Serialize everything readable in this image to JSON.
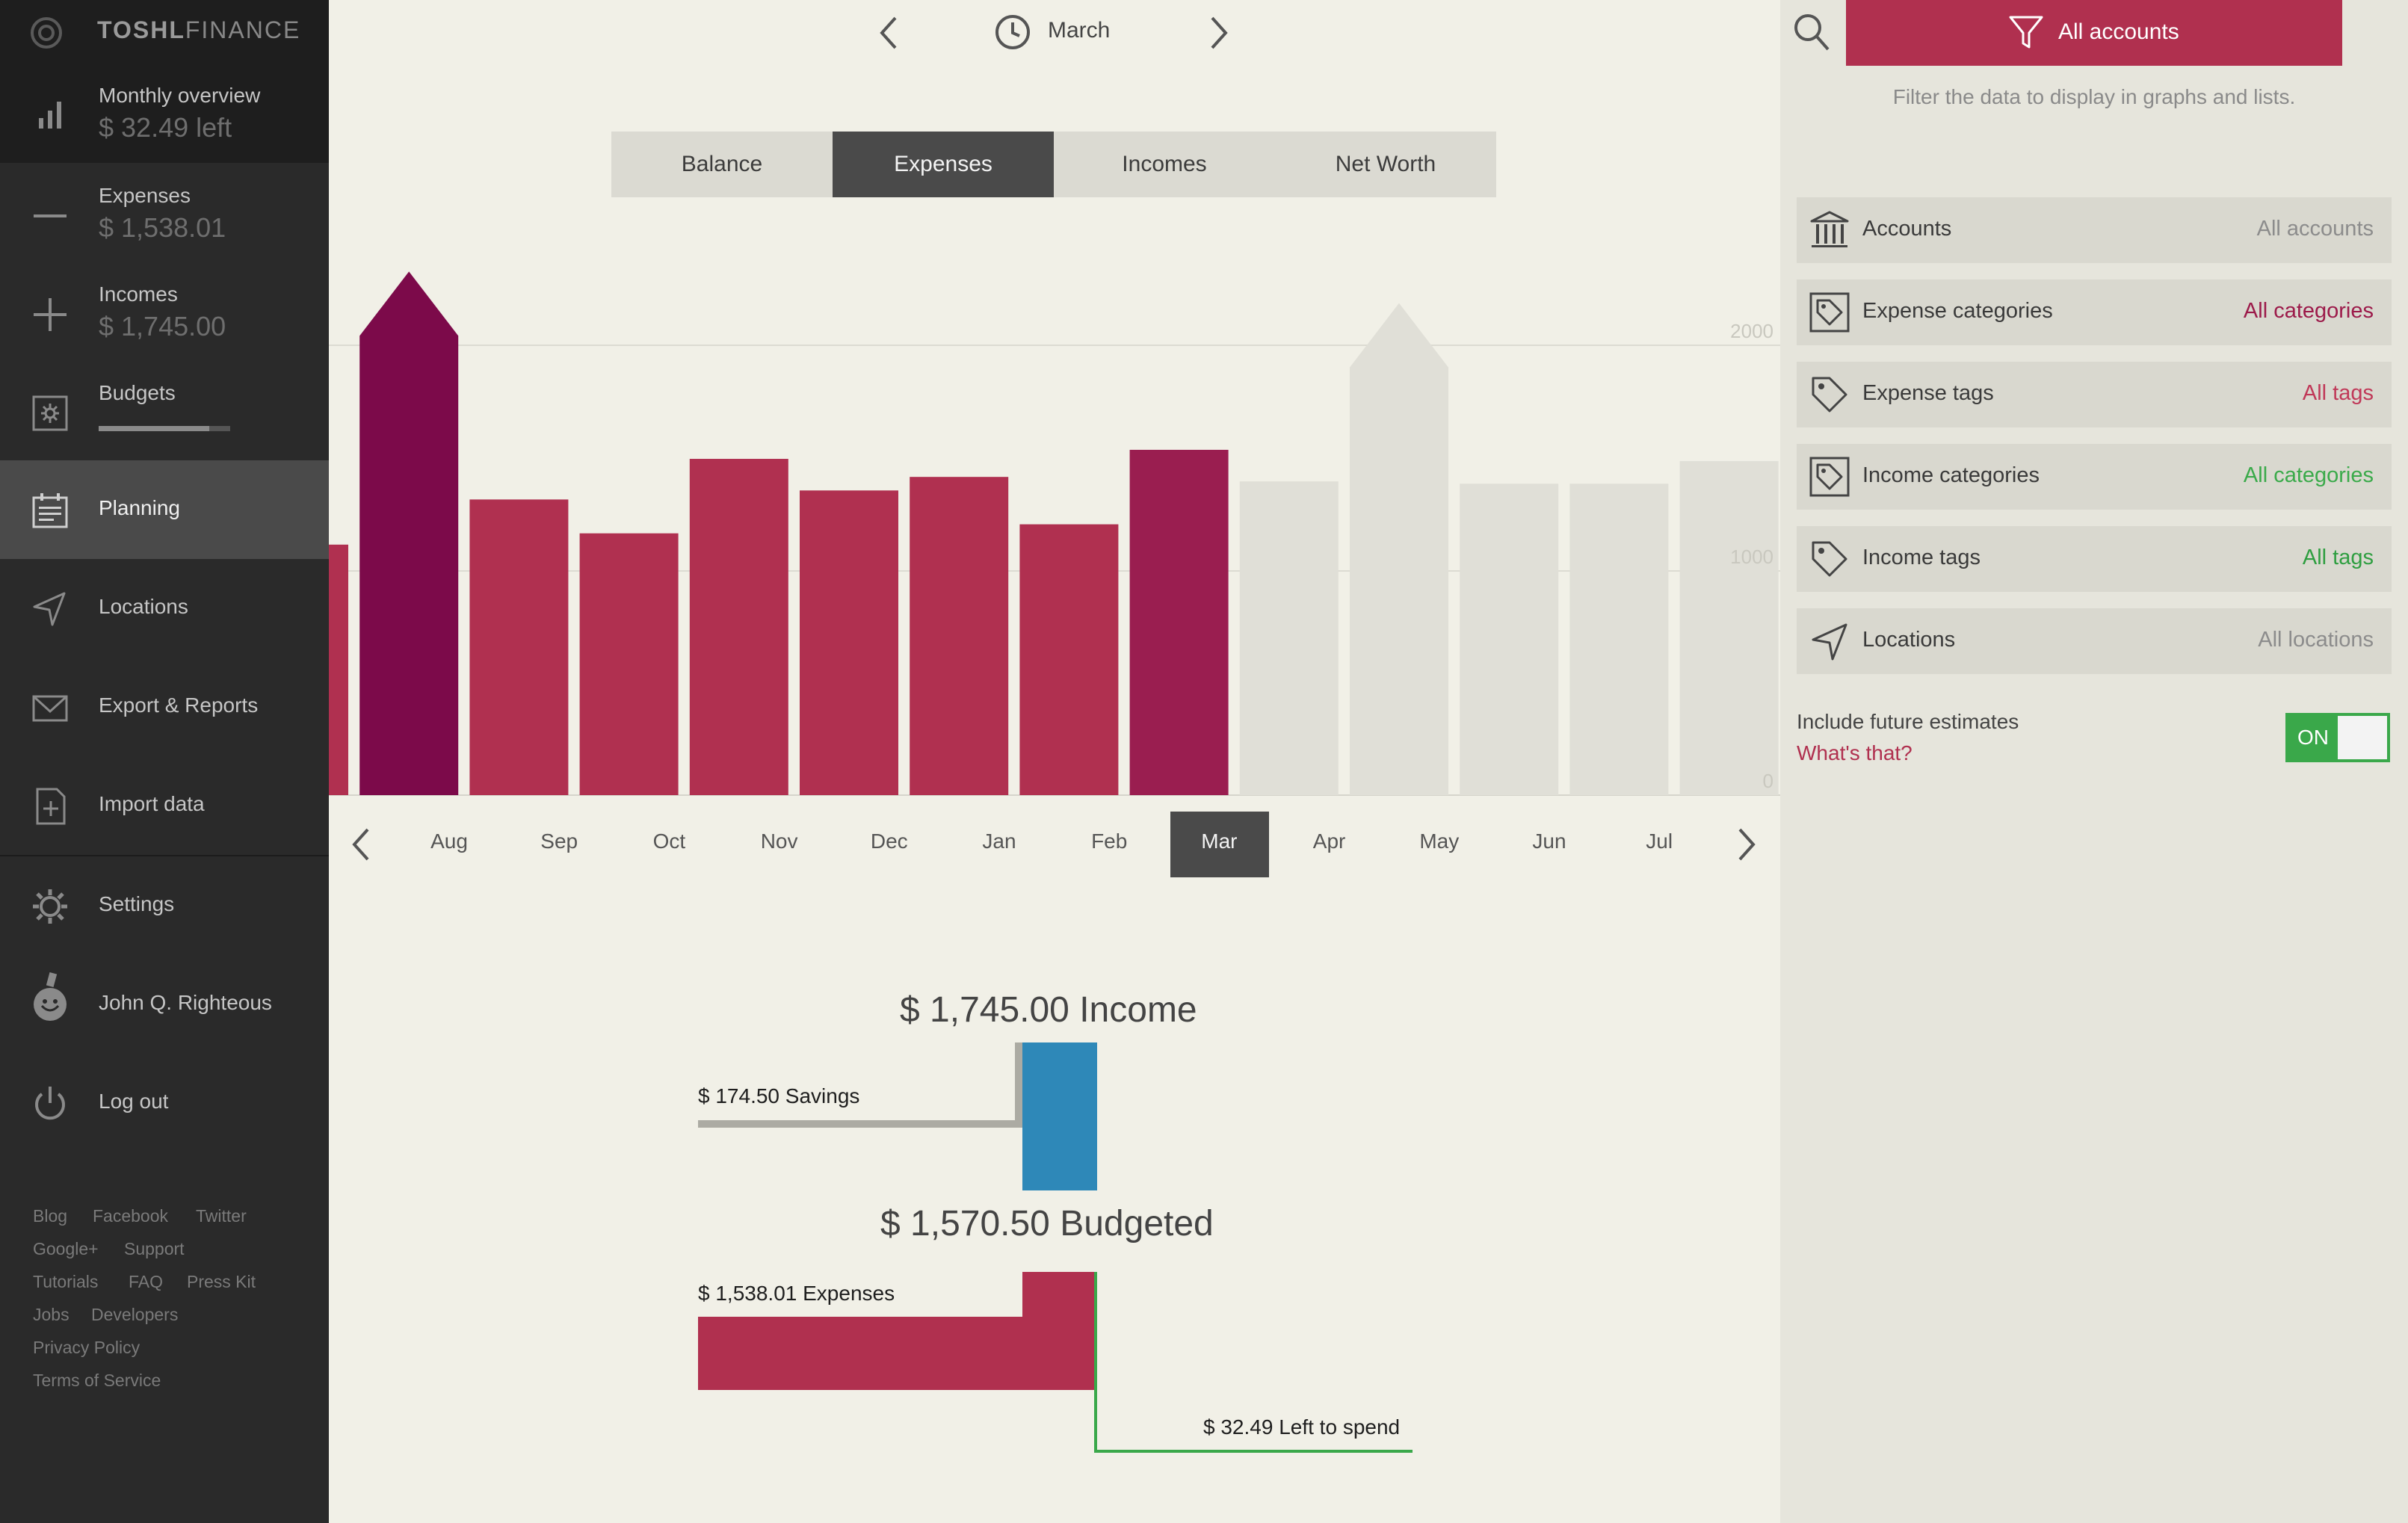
{
  "app": {
    "name_bold": "TOSHL",
    "name_light": "FINANCE"
  },
  "sidebar": {
    "monthly": {
      "title": "Monthly overview",
      "value": "$ 32.49 left"
    },
    "expenses": {
      "title": "Expenses",
      "value": "$ 1,538.01"
    },
    "incomes": {
      "title": "Incomes",
      "value": "$ 1,745.00"
    },
    "budgets": {
      "title": "Budgets",
      "progress": 0.84
    },
    "planning": "Planning",
    "locations": "Locations",
    "export": "Export & Reports",
    "import": "Import data",
    "settings": "Settings",
    "user": "John Q. Righteous",
    "logout": "Log out",
    "footer_links": [
      "Blog",
      "Facebook",
      "Twitter",
      "Google+",
      "Support",
      "Tutorials",
      "FAQ",
      "Press Kit",
      "Jobs",
      "Developers",
      "Privacy Policy",
      "Terms of Service"
    ]
  },
  "period": {
    "label": "March"
  },
  "tabs": [
    "Balance",
    "Expenses",
    "Incomes",
    "Net Worth"
  ],
  "active_tab": "Expenses",
  "months": [
    "Aug",
    "Sep",
    "Oct",
    "Nov",
    "Dec",
    "Jan",
    "Feb",
    "Mar",
    "Apr",
    "May",
    "Jun",
    "Jul"
  ],
  "active_month": "Mar",
  "chart_data": {
    "type": "bar",
    "categories": [
      "Jul",
      "Aug",
      "Sep",
      "Oct",
      "Nov",
      "Dec",
      "Jan",
      "Feb",
      "Mar",
      "Apr",
      "May",
      "Jun",
      "Jul",
      "Aug"
    ],
    "values": [
      1110,
      2320,
      1310,
      1160,
      1490,
      1350,
      1410,
      1200,
      1530,
      1390,
      2180,
      1380,
      1380,
      1480
    ],
    "estimated": [
      false,
      false,
      false,
      false,
      false,
      false,
      false,
      false,
      false,
      true,
      true,
      true,
      true,
      true
    ],
    "ytick_labels": [
      "2000",
      "1000",
      "0"
    ],
    "ylim": [
      0,
      2400
    ],
    "colors": {
      "actual": "#b03050",
      "peak": "#7c0a4a",
      "current": "#9a1e50",
      "future": "#e0dfd7"
    }
  },
  "summary": {
    "income": "$ 1,745.00 Income",
    "savings": "$ 174.50 Savings",
    "budgeted": "$ 1,570.50 Budgeted",
    "expenses": "$ 1,538.01 Expenses",
    "left": "$ 32.49 Left to spend"
  },
  "filters": {
    "button": "All accounts",
    "hint": "Filter the data to display in graphs and lists.",
    "rows": [
      {
        "label": "Accounts",
        "value": "All accounts",
        "color": "#8c8c8c"
      },
      {
        "label": "Expense categories",
        "value": "All categories",
        "color": "#9c1a4a"
      },
      {
        "label": "Expense tags",
        "value": "All tags",
        "color": "#c03858"
      },
      {
        "label": "Income categories",
        "value": "All categories",
        "color": "#3aaa4a"
      },
      {
        "label": "Income tags",
        "value": "All tags",
        "color": "#2e9e40"
      },
      {
        "label": "Locations",
        "value": "All locations",
        "color": "#8c8c8c"
      }
    ],
    "future": {
      "label": "Include future estimates",
      "link": "What's that?",
      "toggle": "ON"
    }
  },
  "colors": {
    "accent": "#b0304f",
    "green": "#3aa84a",
    "blue": "#2e88b8"
  }
}
